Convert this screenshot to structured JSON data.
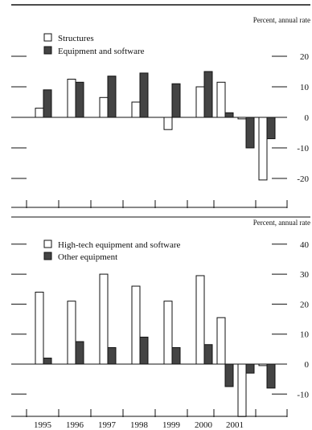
{
  "chart_data": [
    {
      "type": "bar",
      "unit_label": "Percent, annual rate",
      "ylim": [
        -25,
        25
      ],
      "ticks": [
        20,
        10,
        0,
        -10,
        -20
      ],
      "tick_labels": [
        "20",
        "10",
        "0",
        "-10",
        "-20"
      ],
      "legend_placement": "top-left",
      "series": [
        {
          "name": "Structures",
          "fill": "#ffffff",
          "points": [
            {
              "x": 1995,
              "y": 3
            },
            {
              "x": 1996,
              "y": 12.5
            },
            {
              "x": 1997,
              "y": 6.5
            },
            {
              "x": 1998,
              "y": 5
            },
            {
              "x": 1999,
              "y": -4
            },
            {
              "x": "2000 H1",
              "y": 10
            },
            {
              "x": "2000 H2",
              "y": 11.5
            },
            {
              "x": "2001 H1",
              "y": -0.5
            },
            {
              "x": "2001 H2",
              "y": -20.5
            }
          ]
        },
        {
          "name": "Equipment and software",
          "fill": "#444444",
          "points": [
            {
              "x": 1995,
              "y": 9
            },
            {
              "x": 1996,
              "y": 11.5
            },
            {
              "x": 1997,
              "y": 13.5
            },
            {
              "x": 1998,
              "y": 14.5
            },
            {
              "x": 1999,
              "y": 11
            },
            {
              "x": "2000 H1",
              "y": 15
            },
            {
              "x": "2000 H2",
              "y": 1.5
            },
            {
              "x": "2001 H1",
              "y": -10
            },
            {
              "x": "2001 H2",
              "y": -7
            }
          ]
        }
      ]
    },
    {
      "type": "bar",
      "unit_label": "Percent, annual rate",
      "ylim": [
        -20,
        45
      ],
      "ticks": [
        40,
        30,
        20,
        10,
        0,
        -10
      ],
      "tick_labels": [
        "40",
        "30",
        "20",
        "10",
        "0",
        "-10"
      ],
      "legend_placement": "top-left",
      "x_labels": [
        "1995",
        "1996",
        "1997",
        "1998",
        "1999",
        "2000",
        "2001"
      ],
      "series": [
        {
          "name": "High-tech equipment and software",
          "fill": "#ffffff",
          "points": [
            {
              "x": 1995,
              "y": 24
            },
            {
              "x": 1996,
              "y": 21
            },
            {
              "x": 1997,
              "y": 30
            },
            {
              "x": 1998,
              "y": 26
            },
            {
              "x": 1999,
              "y": 21
            },
            {
              "x": "2000 H1",
              "y": 29.5
            },
            {
              "x": "2000 H2",
              "y": 15.5
            },
            {
              "x": "2001 H1",
              "y": -17.5
            },
            {
              "x": "2001 H2",
              "y": -0.5
            }
          ]
        },
        {
          "name": "Other equipment",
          "fill": "#444444",
          "points": [
            {
              "x": 1995,
              "y": 2
            },
            {
              "x": 1996,
              "y": 7.5
            },
            {
              "x": 1997,
              "y": 5.5
            },
            {
              "x": 1998,
              "y": 9
            },
            {
              "x": 1999,
              "y": 5.5
            },
            {
              "x": "2000 H1",
              "y": 6.5
            },
            {
              "x": "2000 H2",
              "y": -7.5
            },
            {
              "x": "2001 H1",
              "y": -3
            },
            {
              "x": "2001 H2",
              "y": -8
            }
          ]
        }
      ]
    }
  ]
}
